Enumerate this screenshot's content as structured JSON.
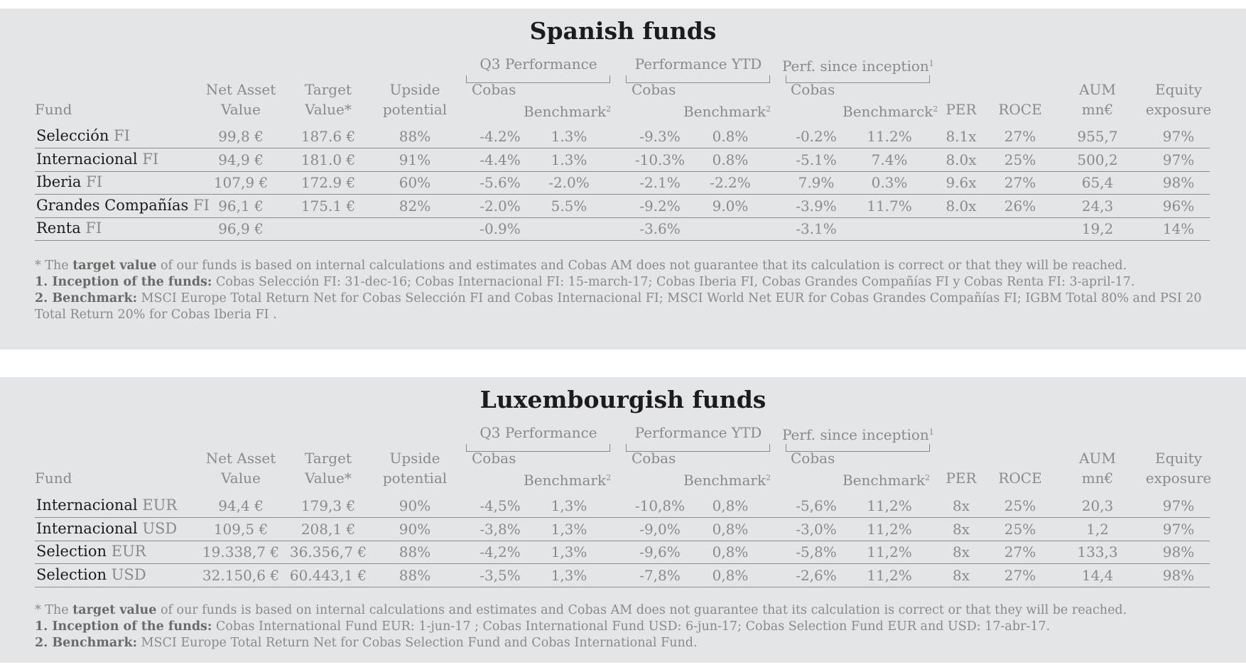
{
  "columns": {
    "fund": "Fund",
    "nav": [
      "Net Asset",
      "Value"
    ],
    "target": [
      "Target",
      "Value*"
    ],
    "upside": [
      "Upside",
      "potential"
    ],
    "group_q3": "Q3 Performance",
    "group_ytd": "Performance YTD",
    "group_inception": "Perf. since  inception",
    "sup1": "1",
    "sup2": "2",
    "cobas": "Cobas",
    "benchmark": "Benchmark",
    "benchmark_incep": "Benchmarck",
    "per": "PER",
    "roce": "ROCE",
    "aum": [
      "AUM",
      "mn€"
    ],
    "equity": [
      "Equity",
      "exposure"
    ]
  },
  "spanish": {
    "title": "Spanish funds",
    "rows": [
      {
        "name": "Selección",
        "suffix": "FI",
        "nav": "99,8 €",
        "target": "187.6 €",
        "upside": "88%",
        "q3_cobas": "-4.2%",
        "q3_bench": "1.3%",
        "ytd_cobas": "-9.3%",
        "ytd_bench": "0.8%",
        "inc_cobas": "-0.2%",
        "inc_bench": "11.2%",
        "per": "8.1x",
        "roce": "27%",
        "aum": "955,7",
        "equity": "97%"
      },
      {
        "name": "Internacional",
        "suffix": "FI",
        "nav": "94,9 €",
        "target": "181.0 €",
        "upside": "91%",
        "q3_cobas": "-4.4%",
        "q3_bench": "1.3%",
        "ytd_cobas": "-10.3%",
        "ytd_bench": "0.8%",
        "inc_cobas": "-5.1%",
        "inc_bench": "7.4%",
        "per": "8.0x",
        "roce": "25%",
        "aum": "500,2",
        "equity": "97%"
      },
      {
        "name": "Iberia",
        "suffix": "FI",
        "nav": "107,9 €",
        "target": "172.9 €",
        "upside": "60%",
        "q3_cobas": "-5.6%",
        "q3_bench": "-2.0%",
        "ytd_cobas": "-2.1%",
        "ytd_bench": "-2.2%",
        "inc_cobas": "7.9%",
        "inc_bench": "0.3%",
        "per": "9.6x",
        "roce": "27%",
        "aum": "65,4",
        "equity": "98%"
      },
      {
        "name": "Grandes Compañías",
        "suffix": "FI",
        "nav": "96,1 €",
        "target": "175.1 €",
        "upside": "82%",
        "q3_cobas": "-2.0%",
        "q3_bench": "5.5%",
        "ytd_cobas": "-9.2%",
        "ytd_bench": "9.0%",
        "inc_cobas": "-3.9%",
        "inc_bench": "11.7%",
        "per": "8.0x",
        "roce": "26%",
        "aum": "24,3",
        "equity": "96%"
      },
      {
        "name": "Renta",
        "suffix": "FI",
        "nav": "96,9 €",
        "target": "",
        "upside": "",
        "q3_cobas": "-0.9%",
        "q3_bench": "",
        "ytd_cobas": "-3.6%",
        "ytd_bench": "",
        "inc_cobas": "-3.1%",
        "inc_bench": "",
        "per": "",
        "roce": "",
        "aum": "19,2",
        "equity": "14%"
      }
    ],
    "notes": {
      "star_pre": "* The ",
      "star_bold": "target value",
      "star_rest": " of our funds is based on internal calculations and estimates and Cobas AM does not guarantee that its calculation is correct or that they will be reached.",
      "n1_bold": "1. Inception of the funds:",
      "n1_rest": " Cobas Selección FI: 31-dec-16; Cobas Internacional FI: 15-march-17; Cobas Iberia FI, Cobas Grandes Compañías FI y Cobas Renta FI: 3-april-17.",
      "n2_bold": "2. Benchmark:",
      "n2_rest": " MSCI Europe Total Return Net for Cobas Selección FI and Cobas Internacional FI; MSCI World Net EUR for Cobas Grandes Compañías FI; IGBM Total 80% and PSI 20 Total Return 20% for Cobas Iberia FI ."
    }
  },
  "lux": {
    "title": "Luxembourgish funds",
    "rows": [
      {
        "name": "Internacional",
        "suffix": "EUR",
        "nav": "94,4 €",
        "target": "179,3 €",
        "upside": "90%",
        "q3_cobas": "-4,5%",
        "q3_bench": "1,3%",
        "ytd_cobas": "-10,8%",
        "ytd_bench": "0,8%",
        "inc_cobas": "-5,6%",
        "inc_bench": "11,2%",
        "per": "8x",
        "roce": "25%",
        "aum": "20,3",
        "equity": "97%"
      },
      {
        "name": "Internacional",
        "suffix": "USD",
        "nav": "109,5 €",
        "target": "208,1 €",
        "upside": "90%",
        "q3_cobas": "-3,8%",
        "q3_bench": "1,3%",
        "ytd_cobas": "-9,0%",
        "ytd_bench": "0,8%",
        "inc_cobas": "-3,0%",
        "inc_bench": "11,2%",
        "per": "8x",
        "roce": "25%",
        "aum": "1,2",
        "equity": "97%"
      },
      {
        "name": "Selection",
        "suffix": "EUR",
        "nav": "19.338,7 €",
        "target": "36.356,7 €",
        "upside": "88%",
        "q3_cobas": "-4,2%",
        "q3_bench": "1,3%",
        "ytd_cobas": "-9,6%",
        "ytd_bench": "0,8%",
        "inc_cobas": "-5,8%",
        "inc_bench": "11,2%",
        "per": "8x",
        "roce": "27%",
        "aum": "133,3",
        "equity": "98%"
      },
      {
        "name": "Selection",
        "suffix": "USD",
        "nav": "32.150,6 €",
        "target": "60.443,1 €",
        "upside": "88%",
        "q3_cobas": "-3,5%",
        "q3_bench": "1,3%",
        "ytd_cobas": "-7,8%",
        "ytd_bench": "0,8%",
        "inc_cobas": "-2,6%",
        "inc_bench": "11,2%",
        "per": "8x",
        "roce": "27%",
        "aum": "14,4",
        "equity": "98%"
      }
    ],
    "notes": {
      "star_pre": "* The ",
      "star_bold": "target value",
      "star_rest": " of our funds is based on internal calculations and estimates and Cobas AM does not guarantee that its calculation is correct or that they will be reached.",
      "n1_bold": "1. Inception of the funds:",
      "n1_rest": " Cobas International Fund EUR: 1-jun-17 ; Cobas International Fund USD: 6-jun-17;  Cobas Selection Fund EUR and USD: 17-abr-17.",
      "n2_bold": "2. Benchmark:",
      "n2_rest": " MSCI Europe Total Return Net for Cobas Selection Fund and Cobas International Fund."
    }
  }
}
